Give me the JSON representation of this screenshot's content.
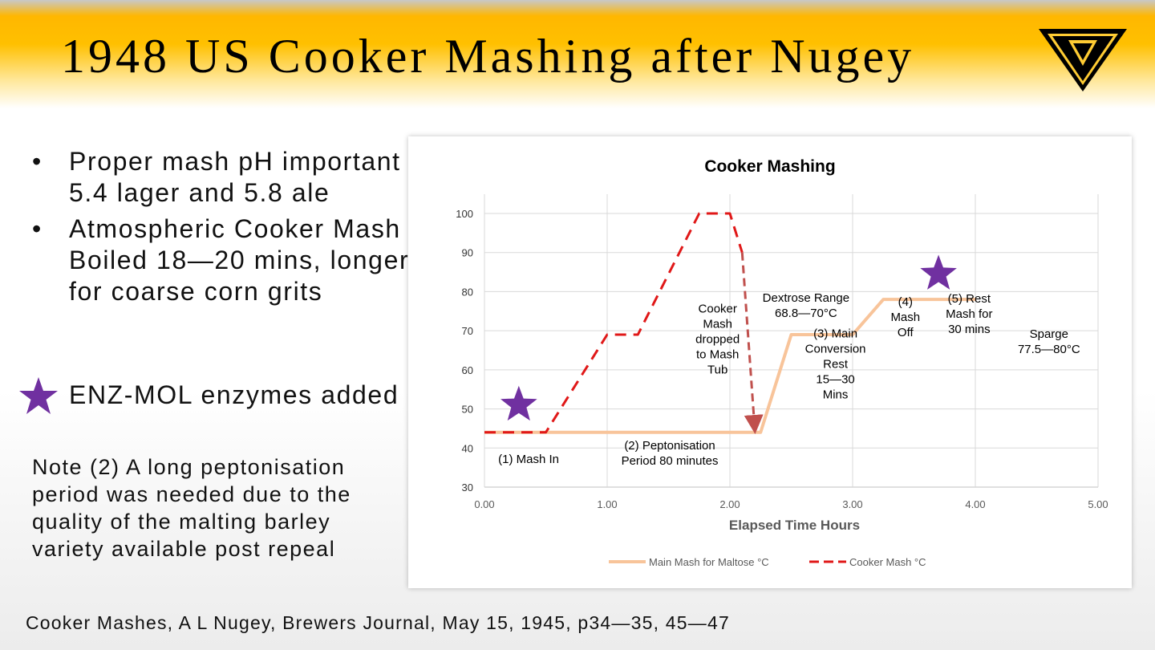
{
  "slide": {
    "title": "1948 US Cooker Mashing after Nugey",
    "logo": "triangle-logo"
  },
  "bullets": [
    {
      "marker": "•",
      "text": "Proper mash pH important 5.4 lager and 5.8 ale"
    },
    {
      "marker": "•",
      "text": "Atmospheric Cooker Mash Boiled 18—20 mins, longer for coarse corn grits"
    }
  ],
  "enzymes": {
    "icon": "star-icon",
    "text": "ENZ-MOL enzymes added",
    "color": "#7030a0"
  },
  "note": "Note (2) A long peptonisation period was needed due to the quality of the malting barley variety available post repeal",
  "citation": "Cooker Mashes, A L Nugey, Brewers Journal, May 15, 1945, p34—35, 45—47",
  "chart_data": {
    "type": "line",
    "title": "Cooker Mashing",
    "xlabel": "Elapsed Time Hours",
    "ylabel": "",
    "xlim": [
      0,
      5
    ],
    "ylim": [
      30,
      100
    ],
    "x_ticks": [
      "0.00",
      "1.00",
      "2.00",
      "3.00",
      "4.00",
      "5.00"
    ],
    "y_ticks": [
      "30",
      "40",
      "50",
      "60",
      "70",
      "80",
      "90",
      "100"
    ],
    "grid": true,
    "legend_position": "bottom",
    "series": [
      {
        "name": "Main Mash for Maltose °C",
        "color": "#f8c49a",
        "style": "solid",
        "x": [
          0,
          2.25,
          2.5,
          3.0,
          3.25,
          4.0
        ],
        "y": [
          44,
          44,
          69,
          69,
          78,
          78
        ]
      },
      {
        "name": "Cooker Mash  °C",
        "color": "#e01818",
        "style": "dashed",
        "x": [
          0,
          0.5,
          1.0,
          1.25,
          1.75,
          2.0,
          2.1
        ],
        "y": [
          44,
          44,
          69,
          69,
          100,
          100,
          90
        ]
      }
    ],
    "transfer_arrow": {
      "from": [
        2.1,
        90
      ],
      "to": [
        2.2,
        46
      ],
      "color": "#c0504d"
    },
    "annotations": [
      {
        "text": [
          "(1) Mash In"
        ],
        "x": 0.36,
        "y": 37.2
      },
      {
        "text": [
          "(2) Peptonisation",
          "Period 80 minutes"
        ],
        "x": 1.51,
        "y": 38.7
      },
      {
        "text": [
          "Cooker",
          "Mash",
          "dropped",
          "to Mash",
          "Tub"
        ],
        "x": 1.9,
        "y": 67.9
      },
      {
        "text": [
          "Dextrose Range",
          "68.8—70°C"
        ],
        "x": 2.62,
        "y": 76.5
      },
      {
        "text": [
          "(3) Main",
          "Conversion",
          "Rest",
          "15—30",
          "Mins"
        ],
        "x": 2.86,
        "y": 61.5
      },
      {
        "text": [
          "(4)",
          "Mash",
          "Off"
        ],
        "x": 3.43,
        "y": 73.5
      },
      {
        "text": [
          "(5) Rest",
          "Mash for",
          "30 mins"
        ],
        "x": 3.95,
        "y": 74.3
      },
      {
        "text": [
          "Sparge",
          "77.5—80°C"
        ],
        "x": 4.6,
        "y": 67.3
      }
    ],
    "markers": [
      {
        "icon": "star",
        "x": 0.28,
        "y": 51,
        "color": "#7030a0"
      },
      {
        "icon": "star",
        "x": 3.7,
        "y": 84.5,
        "color": "#7030a0"
      }
    ]
  }
}
